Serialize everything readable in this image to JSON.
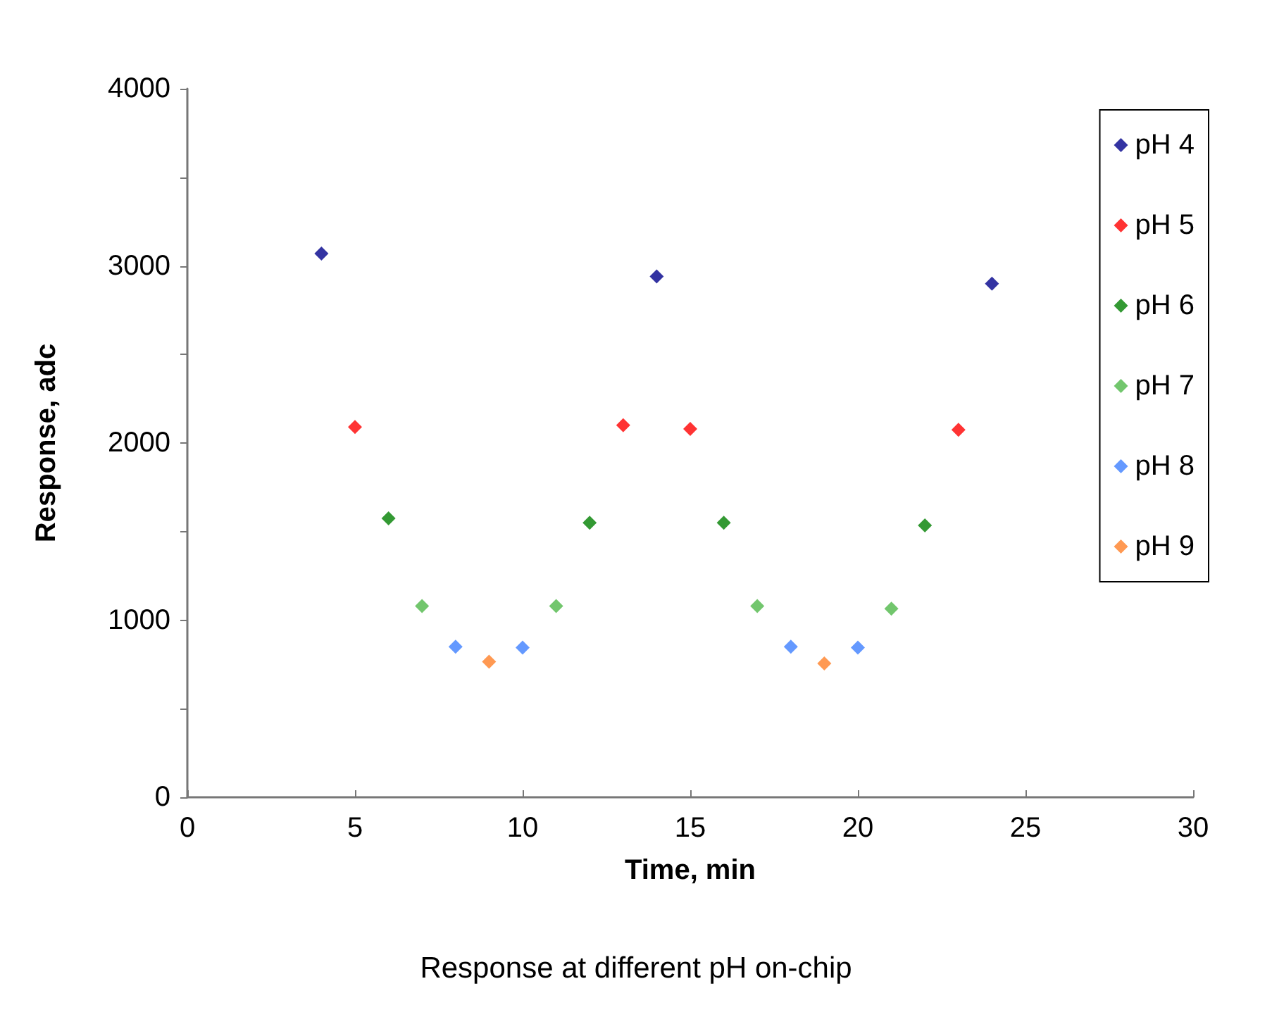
{
  "chart_data": {
    "type": "scatter",
    "xlabel": "Time, min",
    "ylabel": "Response, adc",
    "annotations": [
      "Response at different pH on-chip"
    ],
    "xlim": [
      0,
      30
    ],
    "xticks": [
      0,
      5,
      10,
      15,
      20,
      25,
      30
    ],
    "ylim": [
      0,
      4000
    ],
    "yticks": [
      0,
      {
        "value": 500,
        "label": null
      },
      1000,
      {
        "value": 1500,
        "label": null
      },
      2000,
      {
        "value": 2500,
        "label": null
      },
      3000,
      {
        "value": 3500,
        "label": null
      },
      4000
    ],
    "grid": false,
    "legend": "top right",
    "marker": "diamond",
    "series": [
      {
        "name": "pH 4",
        "color": "#00008b",
        "x": [
          4,
          14,
          24
        ],
        "values": [
          3070,
          2940,
          2900
        ]
      },
      {
        "name": "pH 5",
        "color": "#ff0000",
        "x": [
          5,
          13,
          15,
          23
        ],
        "values": [
          2090,
          2100,
          2080,
          2075
        ]
      },
      {
        "name": "pH 6",
        "color": "#008000",
        "x": [
          6,
          12,
          16,
          22
        ],
        "values": [
          1575,
          1550,
          1550,
          1535
        ]
      },
      {
        "name": "pH 7",
        "color": "#4fb848",
        "x": [
          7,
          11,
          17,
          21
        ],
        "values": [
          1080,
          1080,
          1080,
          1065
        ]
      },
      {
        "name": "pH 8",
        "color": "#3d7fff",
        "x": [
          8,
          10,
          18,
          20
        ],
        "values": [
          850,
          845,
          850,
          845
        ]
      },
      {
        "name": "pH 9",
        "color": "#ff7f27",
        "x": [
          9,
          19
        ],
        "values": [
          765,
          755
        ]
      }
    ]
  }
}
